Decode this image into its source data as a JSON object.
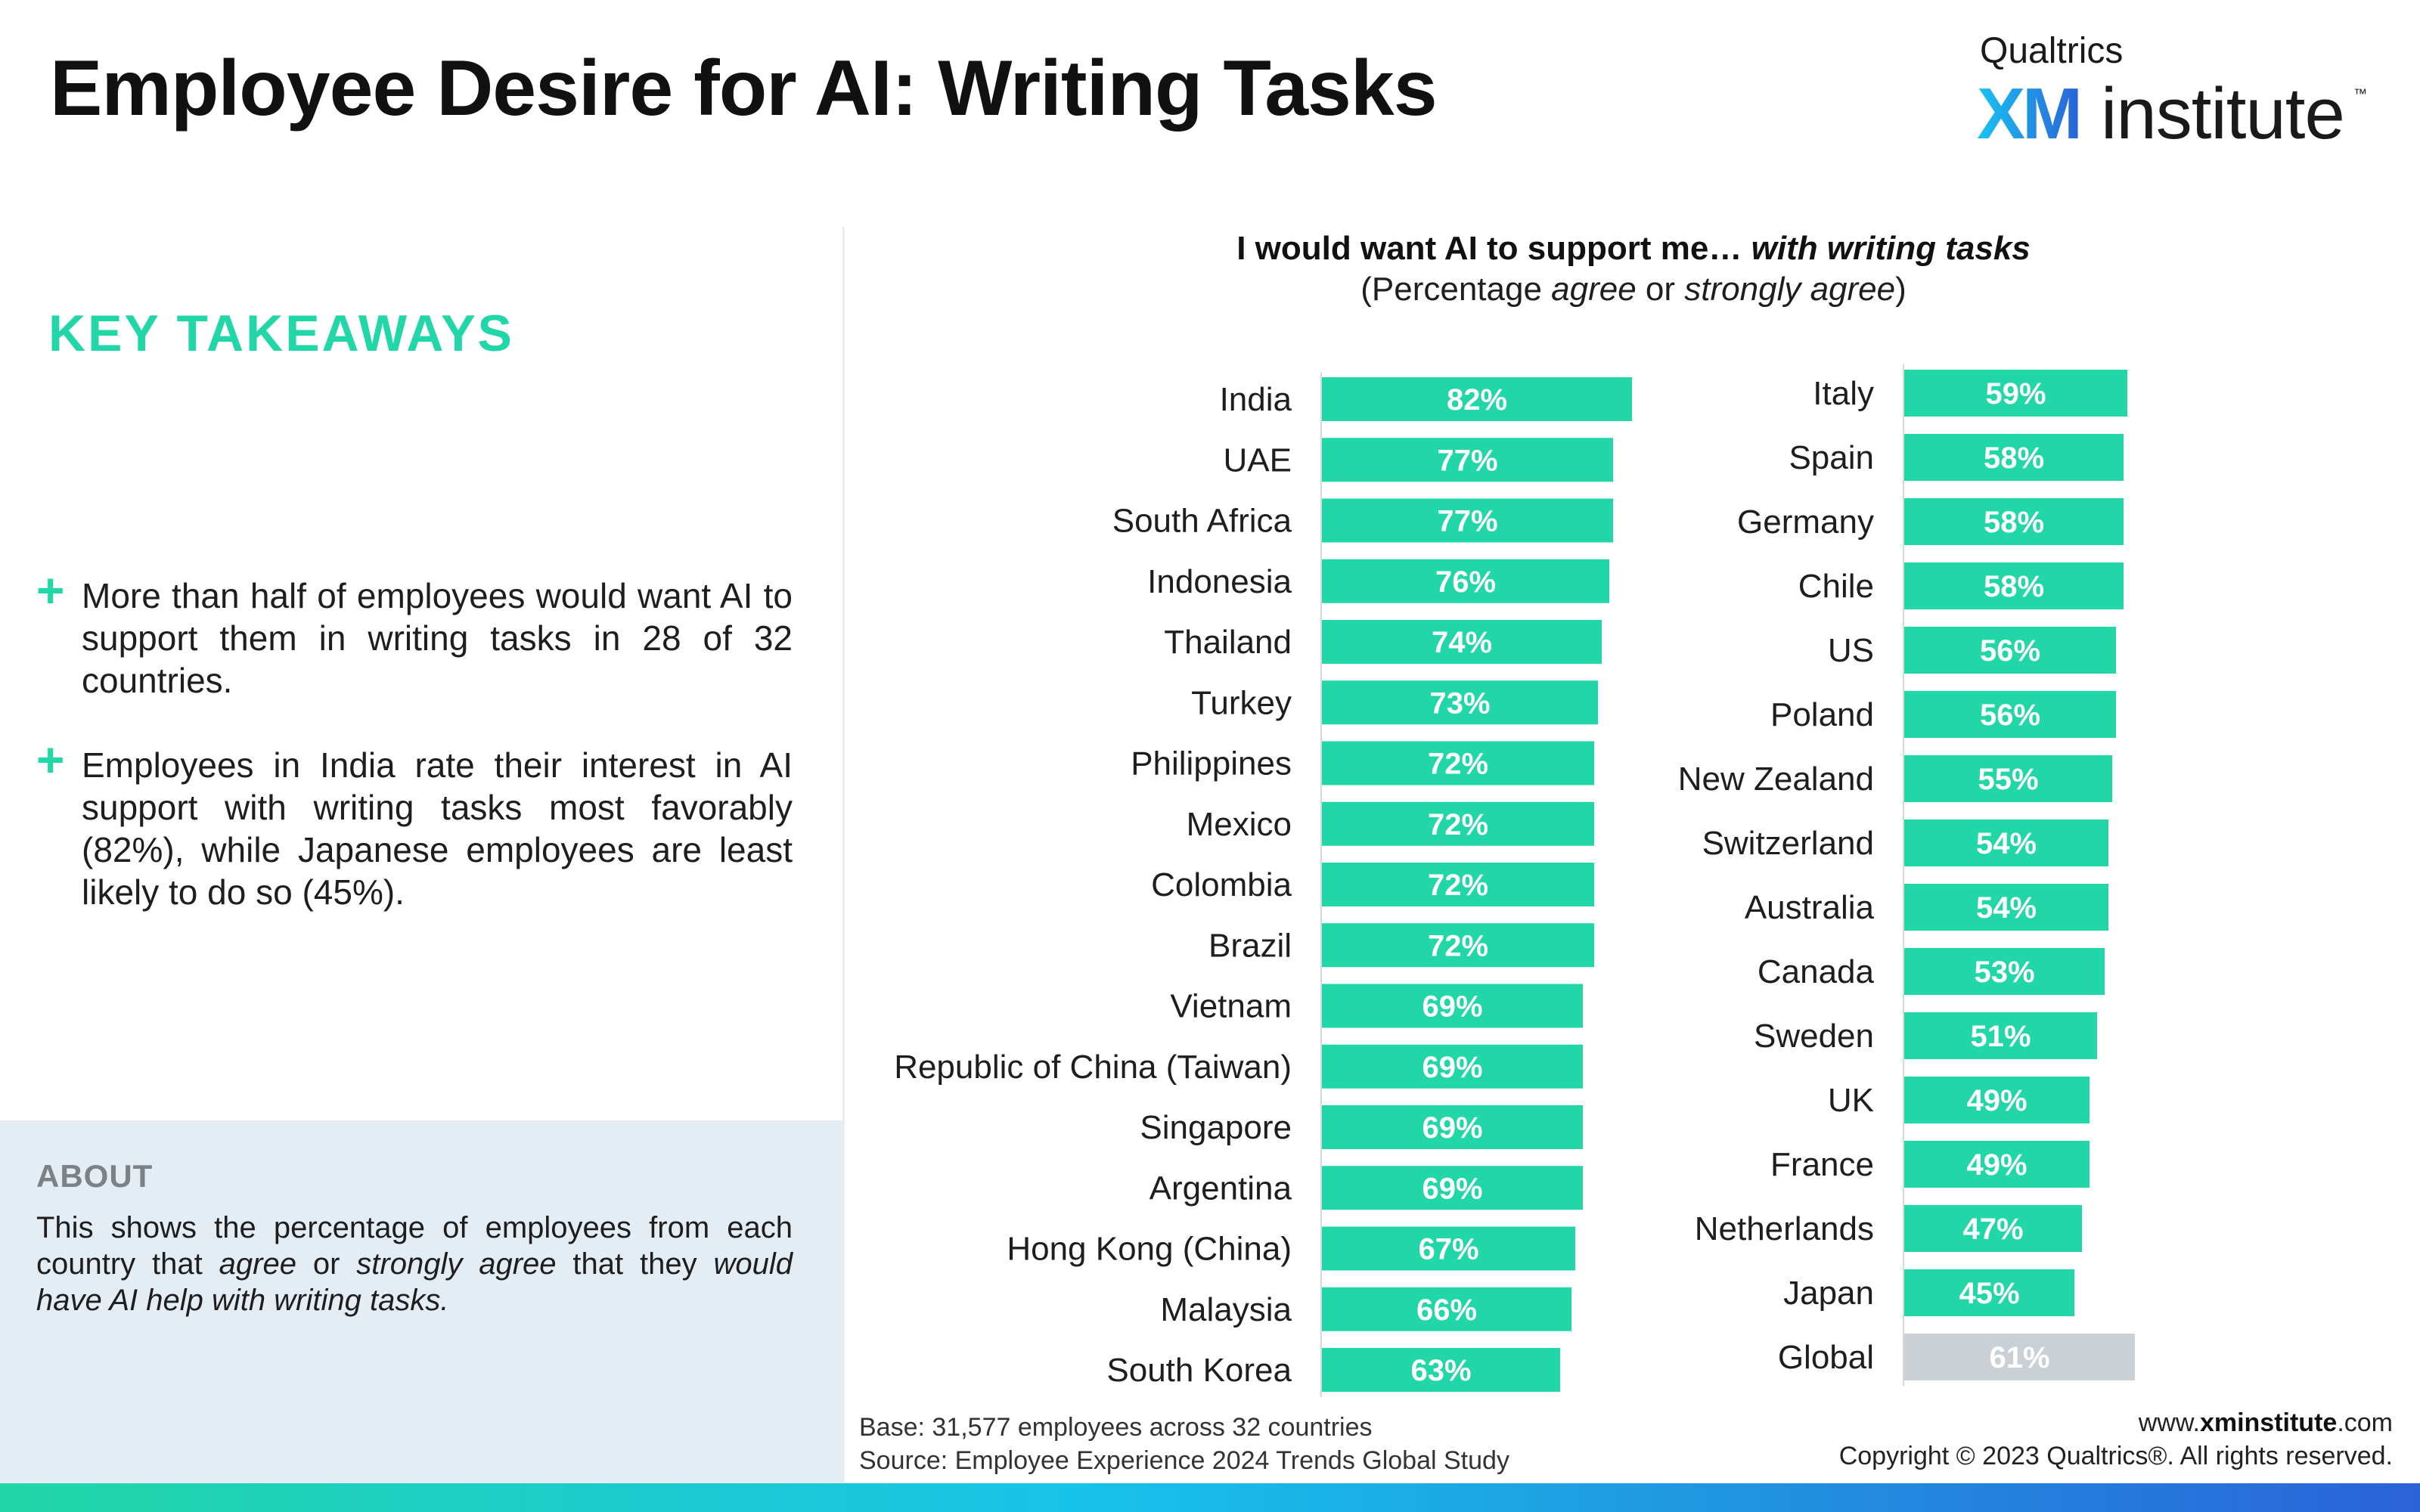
{
  "header": {
    "title": "Employee Desire for AI: Writing Tasks",
    "logo_top": "Qualtrics",
    "logo_xm": "XM",
    "logo_rest": "institute",
    "logo_tm": "™"
  },
  "key_takeaways": {
    "heading": "KEY TAKEAWAYS",
    "items": [
      "More than half of employees would want AI to support them in writing tasks in 28 of 32 countries.",
      "Employees in India rate their interest in AI support with writing tasks most favorably (82%), while Japanese employees are least likely to do so (45%)."
    ]
  },
  "about": {
    "heading": "ABOUT",
    "text_1": "This shows the percentage of employees from each country that ",
    "em_1": "agree",
    "text_2": " or ",
    "em_2": "strongly agree",
    "text_3": " that they ",
    "em_3": "would have AI help with writing tasks."
  },
  "chart_heading": {
    "title_plain": "I would want AI to support me… ",
    "title_em": "with writing tasks",
    "sub_1": "(Percentage ",
    "sub_em1": "agree",
    "sub_2": " or ",
    "sub_em2": "strongly agree",
    "sub_3": ")"
  },
  "chart_data": [
    {
      "type": "bar",
      "orientation": "horizontal",
      "categories": [
        "India",
        "UAE",
        "South Africa",
        "Indonesia",
        "Thailand",
        "Turkey",
        "Philippines",
        "Mexico",
        "Colombia",
        "Brazil",
        "Vietnam",
        "Republic of China (Taiwan)",
        "Singapore",
        "Argentina",
        "Hong Kong (China)",
        "Malaysia",
        "South Korea"
      ],
      "values": [
        82,
        77,
        77,
        76,
        74,
        73,
        72,
        72,
        72,
        72,
        69,
        69,
        69,
        69,
        67,
        66,
        63
      ],
      "labels": [
        "82%",
        "77%",
        "77%",
        "76%",
        "74%",
        "73%",
        "72%",
        "72%",
        "72%",
        "72%",
        "69%",
        "69%",
        "69%",
        "69%",
        "67%",
        "66%",
        "63%"
      ],
      "color": "#21d7a7",
      "xlim": [
        0,
        100
      ]
    },
    {
      "type": "bar",
      "orientation": "horizontal",
      "categories": [
        "Italy",
        "Spain",
        "Germany",
        "Chile",
        "US",
        "Poland",
        "New Zealand",
        "Switzerland",
        "Australia",
        "Canada",
        "Sweden",
        "UK",
        "France",
        "Netherlands",
        "Japan",
        "Global"
      ],
      "values": [
        59,
        58,
        58,
        58,
        56,
        56,
        55,
        54,
        54,
        53,
        51,
        49,
        49,
        47,
        45,
        61
      ],
      "labels": [
        "59%",
        "58%",
        "58%",
        "58%",
        "56%",
        "56%",
        "55%",
        "54%",
        "54%",
        "53%",
        "51%",
        "49%",
        "49%",
        "47%",
        "45%",
        "61%"
      ],
      "color": "#21d7a7",
      "highlight_color": "#c9d1d7",
      "highlight_category": "Global",
      "xlim": [
        0,
        100
      ]
    }
  ],
  "footer": {
    "base": "Base: 31,577 employees across 32 countries",
    "source": "Source: Employee Experience 2024 Trends Global Study",
    "url_prefix": "www.",
    "url_bold": "xminstitute",
    "url_suffix": ".com",
    "copyright": "Copyright © 2023 Qualtrics®. All rights reserved."
  }
}
